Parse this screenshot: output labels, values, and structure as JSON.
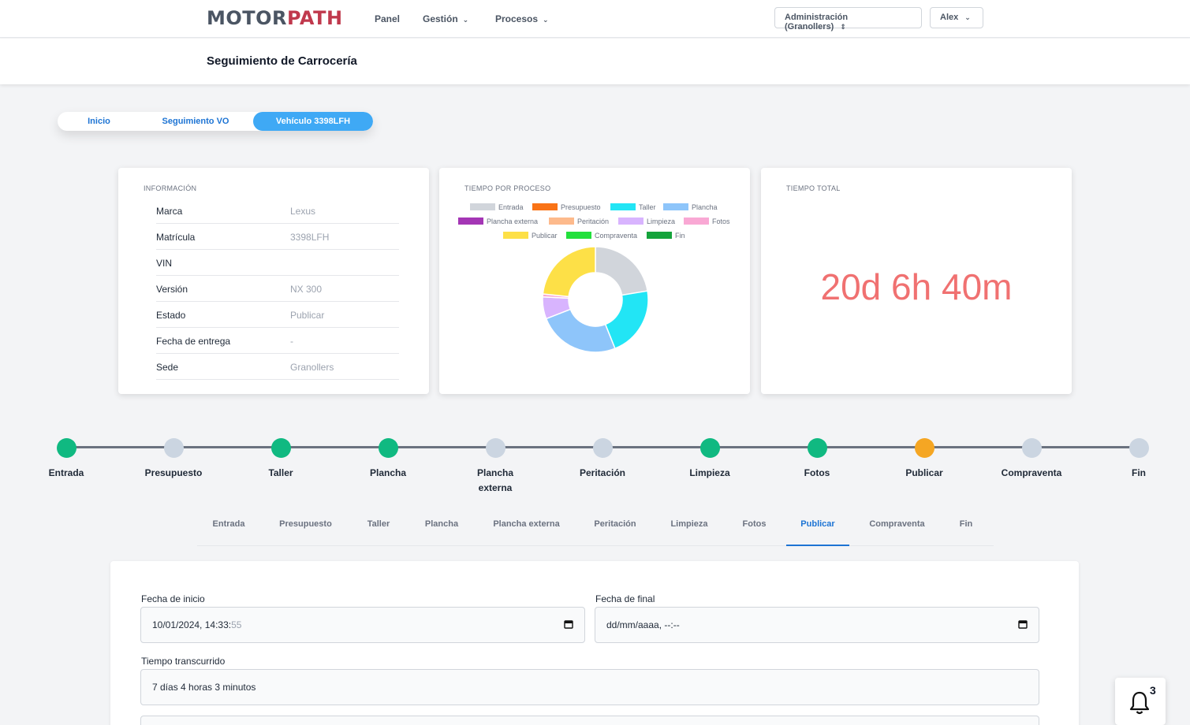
{
  "nav": {
    "logo_a": "MOTOR",
    "logo_b": "PATH",
    "links": [
      "Panel",
      "Gestión",
      "Procesos"
    ],
    "site_select": "Administración (Granollers)",
    "user_menu": "Alex"
  },
  "header": {
    "title": "Seguimiento de Carrocería"
  },
  "breadcrumb": [
    "Inicio",
    "Seguimiento VO",
    "Vehículo 3398LFH"
  ],
  "info": {
    "title": "INFORMACIÓN",
    "rows": [
      {
        "k": "Marca",
        "v": "Lexus"
      },
      {
        "k": "Matrícula",
        "v": "3398LFH"
      },
      {
        "k": "VIN",
        "v": ""
      },
      {
        "k": "Versión",
        "v": "NX 300"
      },
      {
        "k": "Estado",
        "v": "Publicar"
      },
      {
        "k": "Fecha de entrega",
        "v": "-"
      },
      {
        "k": "Sede",
        "v": "Granollers"
      }
    ]
  },
  "chart_card": {
    "title": "TIEMPO POR PROCESO"
  },
  "chart_data": {
    "type": "pie",
    "title": "TIEMPO POR PROCESO",
    "legend_position": "top",
    "categories": [
      "Entrada",
      "Presupuesto",
      "Taller",
      "Plancha",
      "Plancha externa",
      "Peritación",
      "Limpieza",
      "Fotos",
      "Publicar",
      "Compraventa",
      "Fin"
    ],
    "values": [
      5.0,
      0,
      4.8,
      5.6,
      0,
      0,
      1.5,
      0.2,
      5.2,
      0,
      0
    ],
    "colors": [
      "#d1d5db",
      "#f97316",
      "#22e5f5",
      "#8ec5fa",
      "#a436b5",
      "#fdba8c",
      "#d8b4fe",
      "#f9a8d4",
      "#fde047",
      "#22e03c",
      "#15a33b"
    ]
  },
  "total": {
    "title": "TIEMPO TOTAL",
    "value": "20d 6h 40m"
  },
  "stepper": [
    {
      "label": "Entrada",
      "color": "#10b981"
    },
    {
      "label": "Presupuesto",
      "color": "#cbd5e1"
    },
    {
      "label": "Taller",
      "color": "#10b981"
    },
    {
      "label": "Plancha",
      "color": "#10b981"
    },
    {
      "label": "Plancha externa",
      "color": "#cbd5e1"
    },
    {
      "label": "Peritación",
      "color": "#cbd5e1"
    },
    {
      "label": "Limpieza",
      "color": "#10b981"
    },
    {
      "label": "Fotos",
      "color": "#10b981"
    },
    {
      "label": "Publicar",
      "color": "#f5a623"
    },
    {
      "label": "Compraventa",
      "color": "#cbd5e1"
    },
    {
      "label": "Fin",
      "color": "#cbd5e1"
    }
  ],
  "tabs": [
    "Entrada",
    "Presupuesto",
    "Taller",
    "Plancha",
    "Plancha externa",
    "Peritación",
    "Limpieza",
    "Fotos",
    "Publicar",
    "Compraventa",
    "Fin"
  ],
  "active_tab": "Publicar",
  "form": {
    "start_label": "Fecha de inicio",
    "start_value": "10/01/2024, 14:33:",
    "start_seconds": "55",
    "end_label": "Fecha de final",
    "end_value": "dd/mm/aaaa, --:--",
    "elapsed_label": "Tiempo transcurrido",
    "elapsed_value": "7 días 4 horas 3 minutos"
  },
  "notifications": {
    "count": "3"
  }
}
